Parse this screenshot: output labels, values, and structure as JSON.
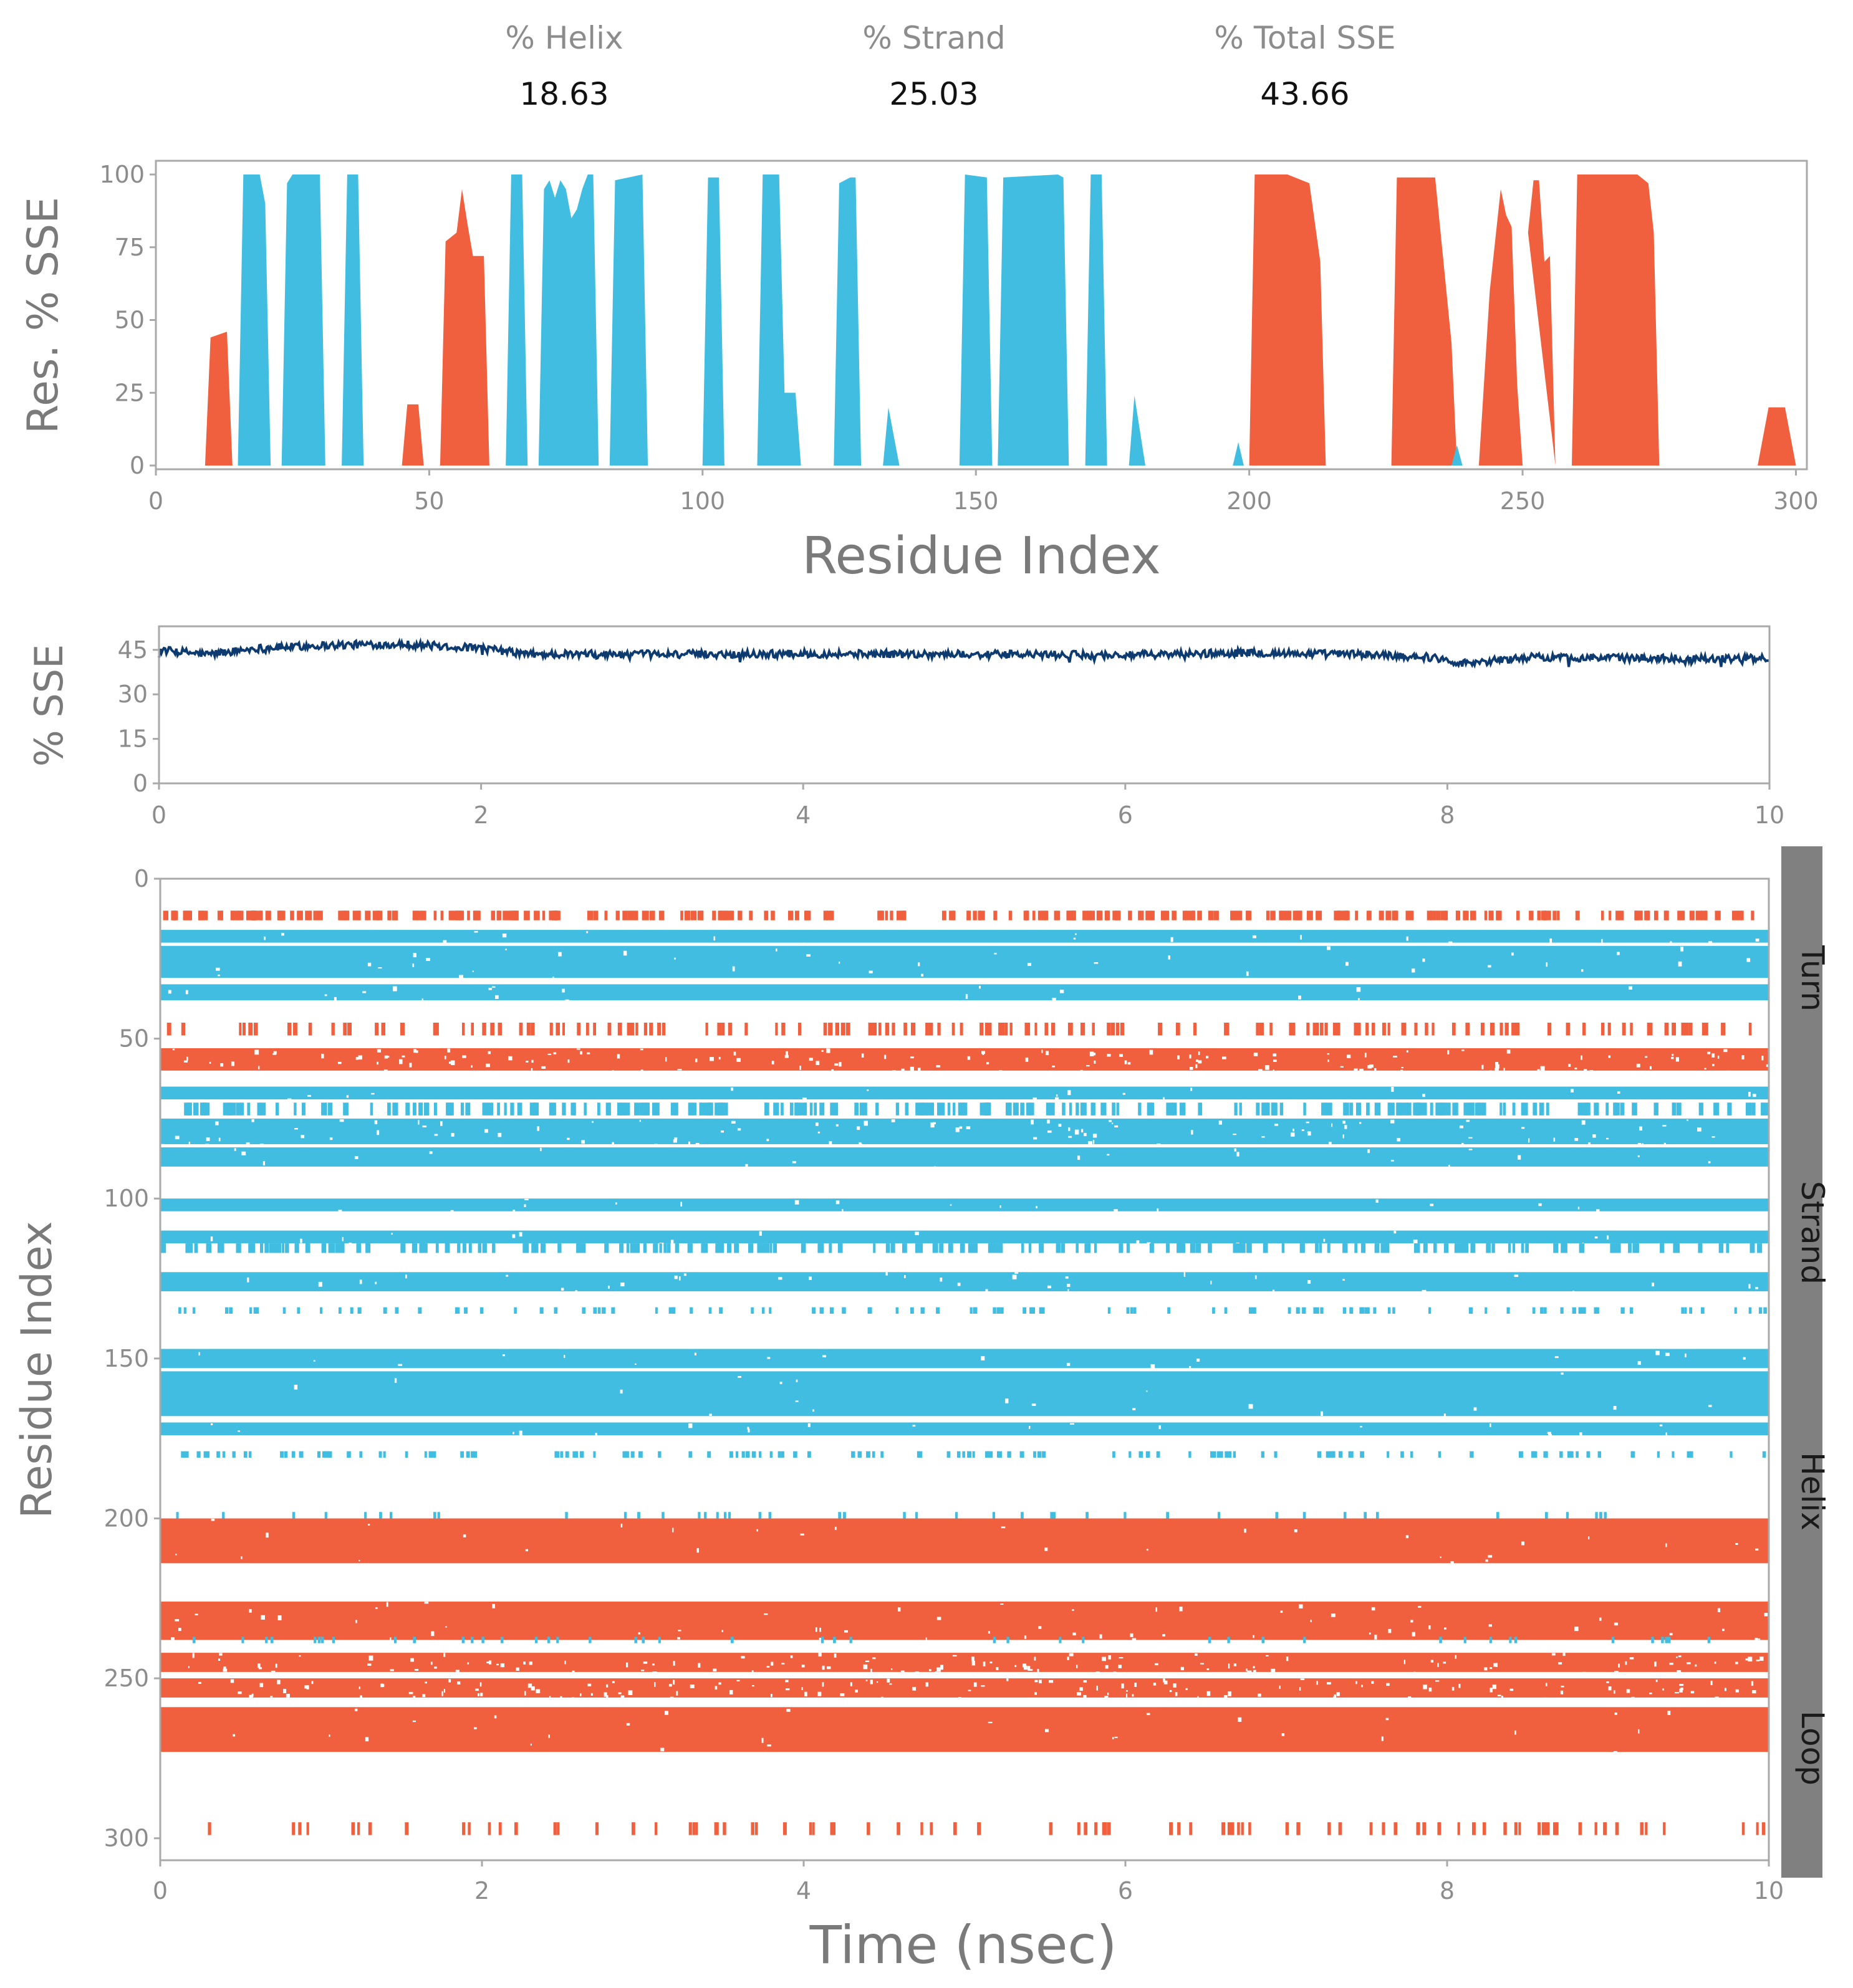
{
  "summary": {
    "helix_label": "% Helix",
    "helix_value": "18.63",
    "strand_label": "% Strand",
    "strand_value": "25.03",
    "total_label": "% Total SSE",
    "total_value": "43.66"
  },
  "colors": {
    "helix": "#f0603e",
    "strand": "#40bde0",
    "line": "#0d3b70",
    "sidebar": "#808080",
    "frame": "#a9a9a9"
  },
  "legend": {
    "turn": "Turn",
    "strand": "Strand",
    "helix": "Helix",
    "loop": "Loop"
  },
  "chart_data": [
    {
      "type": "area",
      "title": "",
      "xlabel": "Residue Index",
      "ylabel": "Res. % SSE",
      "xlim": [
        0,
        302
      ],
      "ylim": [
        0,
        100
      ],
      "xticks": [
        0,
        50,
        100,
        150,
        200,
        250,
        300
      ],
      "yticks": [
        0,
        25,
        50,
        75,
        100
      ],
      "series": [
        {
          "name": "Helix",
          "color": "#f0603e",
          "points": [
            [
              9,
              0
            ],
            [
              10,
              44
            ],
            [
              13,
              46
            ],
            [
              14,
              0
            ],
            [
              45,
              0
            ],
            [
              46,
              21
            ],
            [
              48,
              21
            ],
            [
              49,
              0
            ],
            [
              52,
              0
            ],
            [
              53,
              77
            ],
            [
              55,
              80
            ],
            [
              56,
              95
            ],
            [
              57,
              83
            ],
            [
              58,
              72
            ],
            [
              60,
              72
            ],
            [
              61,
              0
            ],
            [
              200,
              0
            ],
            [
              201,
              100
            ],
            [
              207,
              100
            ],
            [
              211,
              97
            ],
            [
              213,
              70
            ],
            [
              214,
              0
            ],
            [
              226,
              0
            ],
            [
              227,
              99
            ],
            [
              234,
              99
            ],
            [
              237,
              42
            ],
            [
              238,
              0
            ],
            [
              242,
              0
            ],
            [
              244,
              60
            ],
            [
              246,
              95
            ],
            [
              247,
              86
            ],
            [
              248,
              82
            ],
            [
              249,
              28
            ],
            [
              250,
              0
            ],
            [
              251,
              80
            ],
            [
              252,
              98
            ],
            [
              253,
              98
            ],
            [
              254,
              70
            ],
            [
              255,
              72
            ],
            [
              256,
              0
            ],
            [
              259,
              0
            ],
            [
              260,
              100
            ],
            [
              271,
              100
            ],
            [
              273,
              97
            ],
            [
              274,
              80
            ],
            [
              275,
              0
            ],
            [
              293,
              0
            ],
            [
              295,
              20
            ],
            [
              298,
              20
            ],
            [
              300,
              0
            ]
          ]
        },
        {
          "name": "Strand",
          "color": "#40bde0",
          "points": [
            [
              15,
              0
            ],
            [
              16,
              100
            ],
            [
              19,
              100
            ],
            [
              20,
              90
            ],
            [
              21,
              0
            ],
            [
              23,
              0
            ],
            [
              24,
              97
            ],
            [
              25,
              100
            ],
            [
              30,
              100
            ],
            [
              31,
              0
            ],
            [
              34,
              0
            ],
            [
              35,
              100
            ],
            [
              37,
              100
            ],
            [
              38,
              0
            ],
            [
              64,
              0
            ],
            [
              65,
              100
            ],
            [
              67,
              100
            ],
            [
              68,
              0
            ],
            [
              70,
              0
            ],
            [
              71,
              95
            ],
            [
              72,
              98
            ],
            [
              73,
              92
            ],
            [
              74,
              98
            ],
            [
              75,
              95
            ],
            [
              76,
              85
            ],
            [
              77,
              88
            ],
            [
              78,
              95
            ],
            [
              79,
              100
            ],
            [
              80,
              100
            ],
            [
              81,
              0
            ],
            [
              83,
              0
            ],
            [
              84,
              98
            ],
            [
              89,
              100
            ],
            [
              90,
              0
            ],
            [
              100,
              0
            ],
            [
              101,
              99
            ],
            [
              103,
              99
            ],
            [
              104,
              0
            ],
            [
              110,
              0
            ],
            [
              111,
              100
            ],
            [
              114,
              100
            ],
            [
              115,
              25
            ],
            [
              117,
              25
            ],
            [
              118,
              0
            ],
            [
              124,
              0
            ],
            [
              125,
              97
            ],
            [
              127,
              99
            ],
            [
              128,
              99
            ],
            [
              129,
              0
            ],
            [
              133,
              0
            ],
            [
              134,
              20
            ],
            [
              136,
              0
            ],
            [
              147,
              0
            ],
            [
              148,
              100
            ],
            [
              152,
              99
            ],
            [
              153,
              0
            ],
            [
              154,
              0
            ],
            [
              155,
              99
            ],
            [
              165,
              100
            ],
            [
              166,
              99
            ],
            [
              167,
              0
            ],
            [
              170,
              0
            ],
            [
              171,
              100
            ],
            [
              173,
              100
            ],
            [
              174,
              0
            ],
            [
              178,
              0
            ],
            [
              179,
              24
            ],
            [
              181,
              0
            ],
            [
              197,
              0
            ],
            [
              198,
              8
            ],
            [
              199,
              0
            ],
            [
              237,
              0
            ],
            [
              238,
              7
            ],
            [
              239,
              0
            ]
          ]
        }
      ]
    },
    {
      "type": "line",
      "title": "",
      "xlabel": "",
      "ylabel": "% SSE",
      "xlim": [
        0,
        10
      ],
      "ylim": [
        0,
        50
      ],
      "xticks": [
        0,
        2,
        4,
        6,
        8,
        10
      ],
      "yticks": [
        0,
        15,
        30,
        45
      ],
      "baseline": [
        [
          0,
          45
        ],
        [
          0.3,
          43.5
        ],
        [
          0.6,
          45.5
        ],
        [
          1,
          46.5
        ],
        [
          1.5,
          47
        ],
        [
          2,
          45.5
        ],
        [
          2.3,
          43.5
        ],
        [
          3,
          43.5
        ],
        [
          4,
          43.7
        ],
        [
          5,
          43.5
        ],
        [
          6,
          43.2
        ],
        [
          6.7,
          44
        ],
        [
          7.5,
          43.5
        ],
        [
          7.9,
          42.5
        ],
        [
          8.1,
          40.5
        ],
        [
          8.5,
          42.5
        ],
        [
          9,
          42.3
        ],
        [
          10,
          42
        ]
      ],
      "noise_amplitude": 1.3
    },
    {
      "type": "heatmap",
      "title": "",
      "xlabel": "Time (nsec)",
      "ylabel": "Residue Index",
      "xlim": [
        0,
        10
      ],
      "ylim": [
        0,
        302
      ],
      "xticks": [
        0,
        2,
        4,
        6,
        8,
        10
      ],
      "yticks": [
        0,
        50,
        100,
        150,
        200,
        250,
        300
      ],
      "bands": [
        {
          "ss": "H",
          "from": 10,
          "to": 13,
          "density": 0.6
        },
        {
          "ss": "E",
          "from": 16,
          "to": 20,
          "density": 1.0
        },
        {
          "ss": "E",
          "from": 21,
          "to": 31,
          "density": 0.98
        },
        {
          "ss": "E",
          "from": 33,
          "to": 38,
          "density": 1.0
        },
        {
          "ss": "H",
          "from": 45,
          "to": 49,
          "density": 0.35
        },
        {
          "ss": "H",
          "from": 53,
          "to": 60,
          "density": 0.85
        },
        {
          "ss": "E",
          "from": 65,
          "to": 69,
          "density": 1.0
        },
        {
          "ss": "E",
          "from": 70,
          "to": 74,
          "density": 0.55
        },
        {
          "ss": "E",
          "from": 75,
          "to": 83,
          "density": 0.9
        },
        {
          "ss": "E",
          "from": 84,
          "to": 90,
          "density": 1.0
        },
        {
          "ss": "E",
          "from": 100,
          "to": 104,
          "density": 1.0
        },
        {
          "ss": "E",
          "from": 110,
          "to": 114,
          "density": 1.0
        },
        {
          "ss": "E",
          "from": 114,
          "to": 117,
          "density": 0.45
        },
        {
          "ss": "E",
          "from": 123,
          "to": 129,
          "density": 0.98
        },
        {
          "ss": "E",
          "from": 134,
          "to": 136,
          "density": 0.25
        },
        {
          "ss": "E",
          "from": 147,
          "to": 153,
          "density": 1.0
        },
        {
          "ss": "E",
          "from": 154,
          "to": 168,
          "density": 1.0
        },
        {
          "ss": "E",
          "from": 170,
          "to": 174,
          "density": 1.0
        },
        {
          "ss": "E",
          "from": 179,
          "to": 181,
          "density": 0.3
        },
        {
          "ss": "E",
          "from": 198,
          "to": 200,
          "density": 0.08
        },
        {
          "ss": "H",
          "from": 200,
          "to": 214,
          "density": 0.99
        },
        {
          "ss": "H",
          "from": 226,
          "to": 238,
          "density": 0.95
        },
        {
          "ss": "E",
          "from": 237,
          "to": 239,
          "density": 0.08
        },
        {
          "ss": "H",
          "from": 242,
          "to": 248,
          "density": 0.88
        },
        {
          "ss": "H",
          "from": 250,
          "to": 256,
          "density": 0.85
        },
        {
          "ss": "H",
          "from": 259,
          "to": 273,
          "density": 0.99
        },
        {
          "ss": "H",
          "from": 295,
          "to": 299,
          "density": 0.2
        }
      ]
    }
  ]
}
